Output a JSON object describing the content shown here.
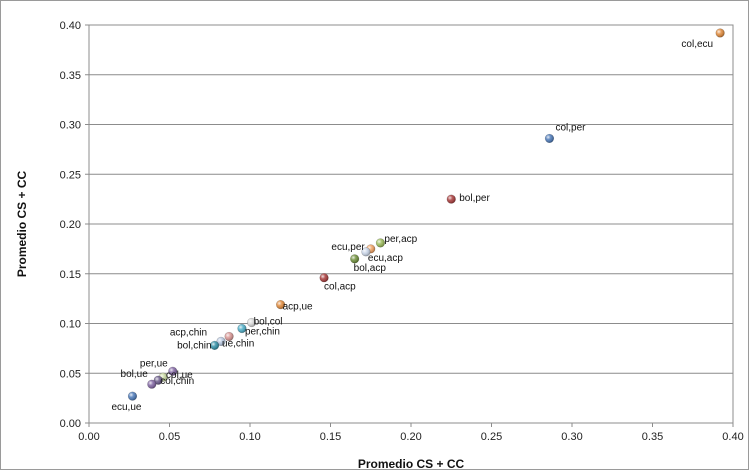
{
  "chart_data": {
    "type": "scatter",
    "title": "",
    "xlabel": "Promedio CS + CC",
    "ylabel": "Promedio CS + CC",
    "xlim": [
      0,
      0.4
    ],
    "ylim": [
      0,
      0.4
    ],
    "x_ticks": [
      "0.00",
      "0.05",
      "0.10",
      "0.15",
      "0.20",
      "0.25",
      "0.30",
      "0.35",
      "0.40"
    ],
    "y_ticks": [
      "0.00",
      "0.05",
      "0.10",
      "0.15",
      "0.20",
      "0.25",
      "0.30",
      "0.35",
      "0.40"
    ],
    "grid": "horizontal",
    "legend": "none",
    "points": [
      {
        "label": "col,ecu",
        "x": 0.392,
        "y": 0.392,
        "color": "#e0893a"
      },
      {
        "label": "col,per",
        "x": 0.286,
        "y": 0.286,
        "color": "#4a78b8"
      },
      {
        "label": "bol,per",
        "x": 0.225,
        "y": 0.225,
        "color": "#a83a3a"
      },
      {
        "label": "per,acp",
        "x": 0.181,
        "y": 0.181,
        "color": "#9bbb59"
      },
      {
        "label": "ecu,per",
        "x": 0.175,
        "y": 0.175,
        "color": "#f0a060"
      },
      {
        "label": "ecu,acp",
        "x": 0.172,
        "y": 0.172,
        "color": "#c9d5e8"
      },
      {
        "label": "bol,acp",
        "x": 0.165,
        "y": 0.165,
        "color": "#6e8f3a"
      },
      {
        "label": "col,acp",
        "x": 0.146,
        "y": 0.146,
        "color": "#a83a3a"
      },
      {
        "label": "acp,ue",
        "x": 0.119,
        "y": 0.119,
        "color": "#e0893a"
      },
      {
        "label": "bol,col",
        "x": 0.101,
        "y": 0.101,
        "color": "#d8d8d8"
      },
      {
        "label": "per,chin",
        "x": 0.095,
        "y": 0.095,
        "color": "#4bacc6"
      },
      {
        "label": "acp,chin",
        "x": 0.087,
        "y": 0.087,
        "color": "#d99694"
      },
      {
        "label": "ue,chin",
        "x": 0.082,
        "y": 0.082,
        "color": "#b7c7e0"
      },
      {
        "label": "bol,chin",
        "x": 0.078,
        "y": 0.078,
        "color": "#2f8fa6"
      },
      {
        "label": "per,ue",
        "x": 0.052,
        "y": 0.052,
        "color": "#8064a2"
      },
      {
        "label": "col,ue",
        "x": 0.046,
        "y": 0.046,
        "color": "#c8d8a0"
      },
      {
        "label": "col,chin",
        "x": 0.043,
        "y": 0.043,
        "color": "#6a5a8a"
      },
      {
        "label": "bol,ue",
        "x": 0.039,
        "y": 0.039,
        "color": "#8064a2"
      },
      {
        "label": "ecu,ue",
        "x": 0.027,
        "y": 0.027,
        "color": "#4a78b8"
      }
    ]
  }
}
